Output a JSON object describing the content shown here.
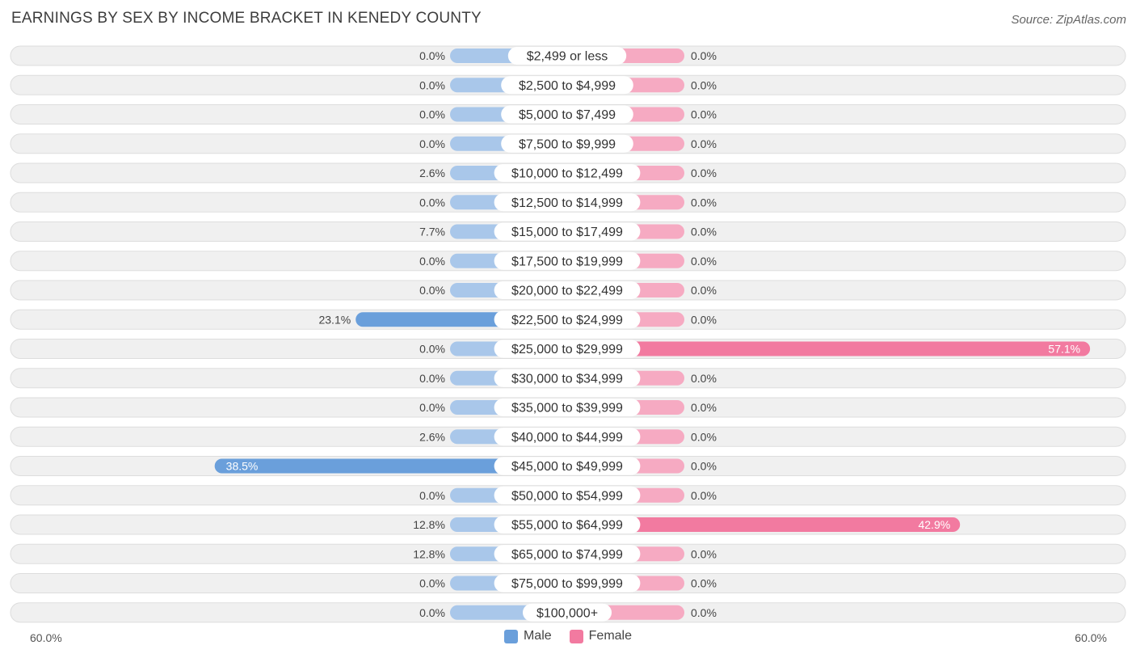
{
  "header": {
    "title": "EARNINGS BY SEX BY INCOME BRACKET IN KENEDY COUNTY",
    "source": "Source: ZipAtlas.com"
  },
  "colors": {
    "male_strong": "#6a9fdb",
    "male_light": "#a9c7ea",
    "female_strong": "#f27aa0",
    "female_light": "#f6aac2",
    "row_bg": "#f0f0f0",
    "row_border": "#dddddd"
  },
  "axis": {
    "left_label": "60.0%",
    "right_label": "60.0%"
  },
  "legend": {
    "male": "Male",
    "female": "Female"
  },
  "chart_data": {
    "type": "bar",
    "orientation": "horizontal-diverging",
    "title": "EARNINGS BY SEX BY INCOME BRACKET IN KENEDY COUNTY",
    "xlim": [
      -60,
      60
    ],
    "categories": [
      "$2,499 or less",
      "$2,500 to $4,999",
      "$5,000 to $7,499",
      "$7,500 to $9,999",
      "$10,000 to $12,499",
      "$12,500 to $14,999",
      "$15,000 to $17,499",
      "$17,500 to $19,999",
      "$20,000 to $22,499",
      "$22,500 to $24,999",
      "$25,000 to $29,999",
      "$30,000 to $34,999",
      "$35,000 to $39,999",
      "$40,000 to $44,999",
      "$45,000 to $49,999",
      "$50,000 to $54,999",
      "$55,000 to $64,999",
      "$65,000 to $74,999",
      "$75,000 to $99,999",
      "$100,000+"
    ],
    "series": [
      {
        "name": "Male",
        "values": [
          0.0,
          0.0,
          0.0,
          0.0,
          2.6,
          0.0,
          7.7,
          0.0,
          0.0,
          23.1,
          0.0,
          0.0,
          0.0,
          2.6,
          38.5,
          0.0,
          12.8,
          12.8,
          0.0,
          0.0
        ],
        "labels": [
          "0.0%",
          "0.0%",
          "0.0%",
          "0.0%",
          "2.6%",
          "0.0%",
          "7.7%",
          "0.0%",
          "0.0%",
          "23.1%",
          "0.0%",
          "0.0%",
          "0.0%",
          "2.6%",
          "38.5%",
          "0.0%",
          "12.8%",
          "12.8%",
          "0.0%",
          "0.0%"
        ]
      },
      {
        "name": "Female",
        "values": [
          0.0,
          0.0,
          0.0,
          0.0,
          0.0,
          0.0,
          0.0,
          0.0,
          0.0,
          0.0,
          57.1,
          0.0,
          0.0,
          0.0,
          0.0,
          0.0,
          42.9,
          0.0,
          0.0,
          0.0
        ],
        "labels": [
          "0.0%",
          "0.0%",
          "0.0%",
          "0.0%",
          "0.0%",
          "0.0%",
          "0.0%",
          "0.0%",
          "0.0%",
          "0.0%",
          "57.1%",
          "0.0%",
          "0.0%",
          "0.0%",
          "0.0%",
          "0.0%",
          "42.9%",
          "0.0%",
          "0.0%",
          "0.0%"
        ]
      }
    ]
  }
}
